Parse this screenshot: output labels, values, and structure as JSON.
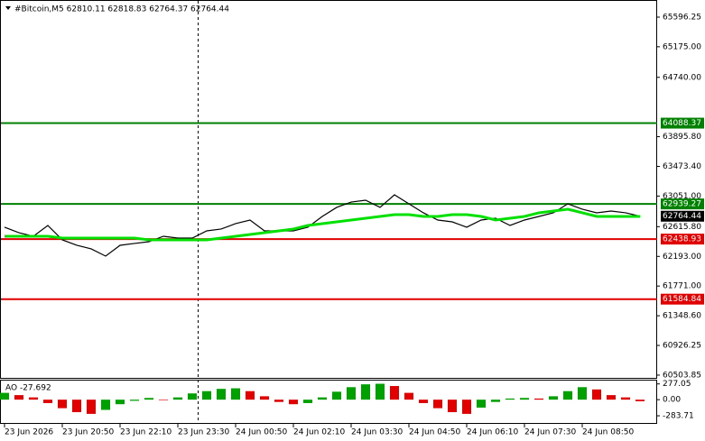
{
  "chart_data": [
    {
      "type": "line",
      "title": "#Bitcoin,M5 62810.11 62818.83 62764.37 62764.44",
      "categories": [
        "23 Jun 2026",
        null,
        null,
        null,
        "23 Jun 20:50",
        null,
        null,
        null,
        "23 Jun 22:10",
        null,
        null,
        null,
        "23 Jun 23:30",
        null,
        null,
        null,
        "24 Jun 00:50",
        null,
        null,
        null,
        "24 Jun 02:10",
        null,
        null,
        null,
        "24 Jun 03:30",
        null,
        null,
        null,
        "24 Jun 04:50",
        null,
        null,
        null,
        "24 Jun 06:10",
        null,
        null,
        null,
        "24 Jun 07:30",
        null,
        null,
        null,
        "24 Jun 08:50",
        null,
        null,
        null,
        null
      ],
      "series": [
        {
          "color": "#000000",
          "values": [
            62608,
            62530,
            62479,
            62633,
            62428,
            62351,
            62300,
            62197,
            62351,
            62377,
            62402,
            62479,
            62453,
            62453,
            62556,
            62582,
            62659,
            62710,
            62556,
            62556,
            62556,
            62608,
            62761,
            62890,
            62966,
            62992,
            62890,
            63069,
            62941,
            62813,
            62710,
            62684,
            62608,
            62710,
            62736,
            62633,
            62710,
            62761,
            62813,
            62941,
            62864,
            62813,
            62838,
            62813,
            62764.44
          ]
        },
        {
          "color": "#00e000",
          "values": [
            62479,
            62479,
            62479,
            62479,
            62453,
            62453,
            62453,
            62453,
            62453,
            62453,
            62428,
            62428,
            62428,
            62428,
            62428,
            62453,
            62479,
            62505,
            62530,
            62556,
            62582,
            62633,
            62659,
            62684,
            62710,
            62736,
            62761,
            62787,
            62787,
            62761,
            62761,
            62787,
            62787,
            62761,
            62710,
            62736,
            62761,
            62813,
            62838,
            62864,
            62813,
            62761,
            62761,
            62761,
            62761
          ]
        }
      ],
      "levels": [
        {
          "value": 64088.37,
          "color": "#008000"
        },
        {
          "value": 62939.27,
          "color": "#008000"
        },
        {
          "value": 62438.93,
          "color": "#e00000"
        },
        {
          "value": 61584.84,
          "color": "#e00000"
        }
      ],
      "current_price": 62764.44,
      "ylim": [
        60452,
        65776
      ],
      "yticks": [
        65596.25,
        {
          "value": 65175,
          "label": "65175.00"
        },
        {
          "value": 64740,
          "label": "64740.00"
        },
        {
          "value": 63895.8,
          "label": "63895.80"
        },
        {
          "value": 63473.4,
          "label": "63473.40"
        },
        {
          "value": 63051,
          "label": "63051.00"
        },
        {
          "value": 62615.8,
          "label": "62615.80"
        },
        {
          "value": 62193,
          "label": "62193.00"
        },
        {
          "value": 61771,
          "label": "61771.00"
        },
        {
          "value": 61348.6,
          "label": "61348.60"
        },
        {
          "value": 60926.25,
          "label": "60926.25"
        },
        {
          "value": 60503.85,
          "label": "60503.85"
        }
      ]
    },
    {
      "type": "histogram",
      "title": "AO -27.692",
      "colors": [
        "#00a000",
        "#e00000"
      ],
      "values": [
        120,
        80,
        40,
        -60,
        -150,
        -220,
        -250,
        -180,
        -80,
        -20,
        30,
        -10,
        40,
        110,
        150,
        190,
        200,
        150,
        60,
        -40,
        -80,
        -60,
        40,
        140,
        220,
        270,
        280,
        240,
        120,
        -60,
        -150,
        -220,
        -250,
        -140,
        -40,
        20,
        30,
        20,
        60,
        150,
        220,
        180,
        80,
        40,
        -27.692
      ],
      "ylim": [
        -410,
        320
      ],
      "yticks": [
        277.05,
        {
          "value": 0,
          "label": "0.00"
        },
        -283.71
      ]
    }
  ]
}
